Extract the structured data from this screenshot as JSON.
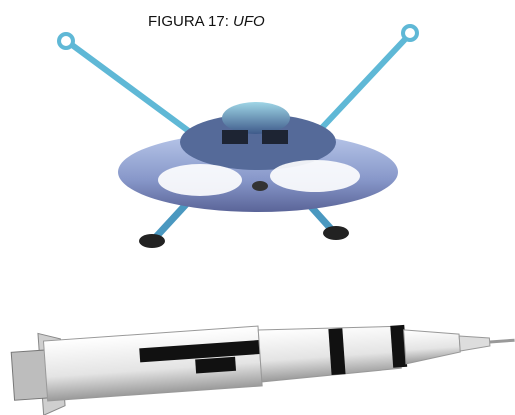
{
  "caption": {
    "label": "FIGURA 17:",
    "name": "UFO"
  }
}
